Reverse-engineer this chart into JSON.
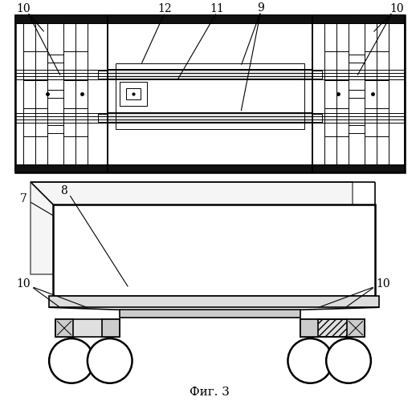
{
  "bg_color": "#ffffff",
  "line_color": "#000000",
  "fig_caption": "Фиг. 3",
  "caption_fontsize": 11,
  "label_fontsize": 10,
  "figsize": [
    5.23,
    5.0
  ],
  "dpi": 100
}
